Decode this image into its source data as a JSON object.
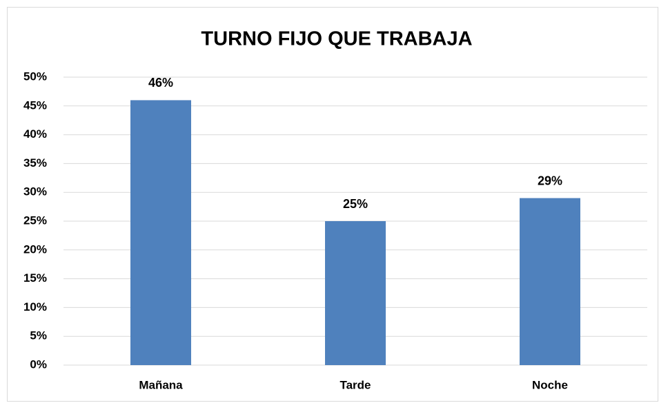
{
  "chart_data": {
    "type": "bar",
    "title": "TURNO FIJO QUE TRABAJA",
    "categories": [
      "Mañana",
      "Tarde",
      "Noche"
    ],
    "values": [
      46,
      25,
      29
    ],
    "value_labels": [
      "46%",
      "25%",
      "29%"
    ],
    "color": "#4f81bd",
    "ylim": [
      0,
      50
    ],
    "yticks": [
      {
        "value": 0,
        "label": "0%"
      },
      {
        "value": 5,
        "label": "5%"
      },
      {
        "value": 10,
        "label": "10%"
      },
      {
        "value": 15,
        "label": "15%"
      },
      {
        "value": 20,
        "label": "20%"
      },
      {
        "value": 25,
        "label": "25%"
      },
      {
        "value": 30,
        "label": "30%"
      },
      {
        "value": 35,
        "label": "35%"
      },
      {
        "value": 40,
        "label": "40%"
      },
      {
        "value": 45,
        "label": "45%"
      },
      {
        "value": 50,
        "label": "50%"
      }
    ],
    "grid": true
  }
}
